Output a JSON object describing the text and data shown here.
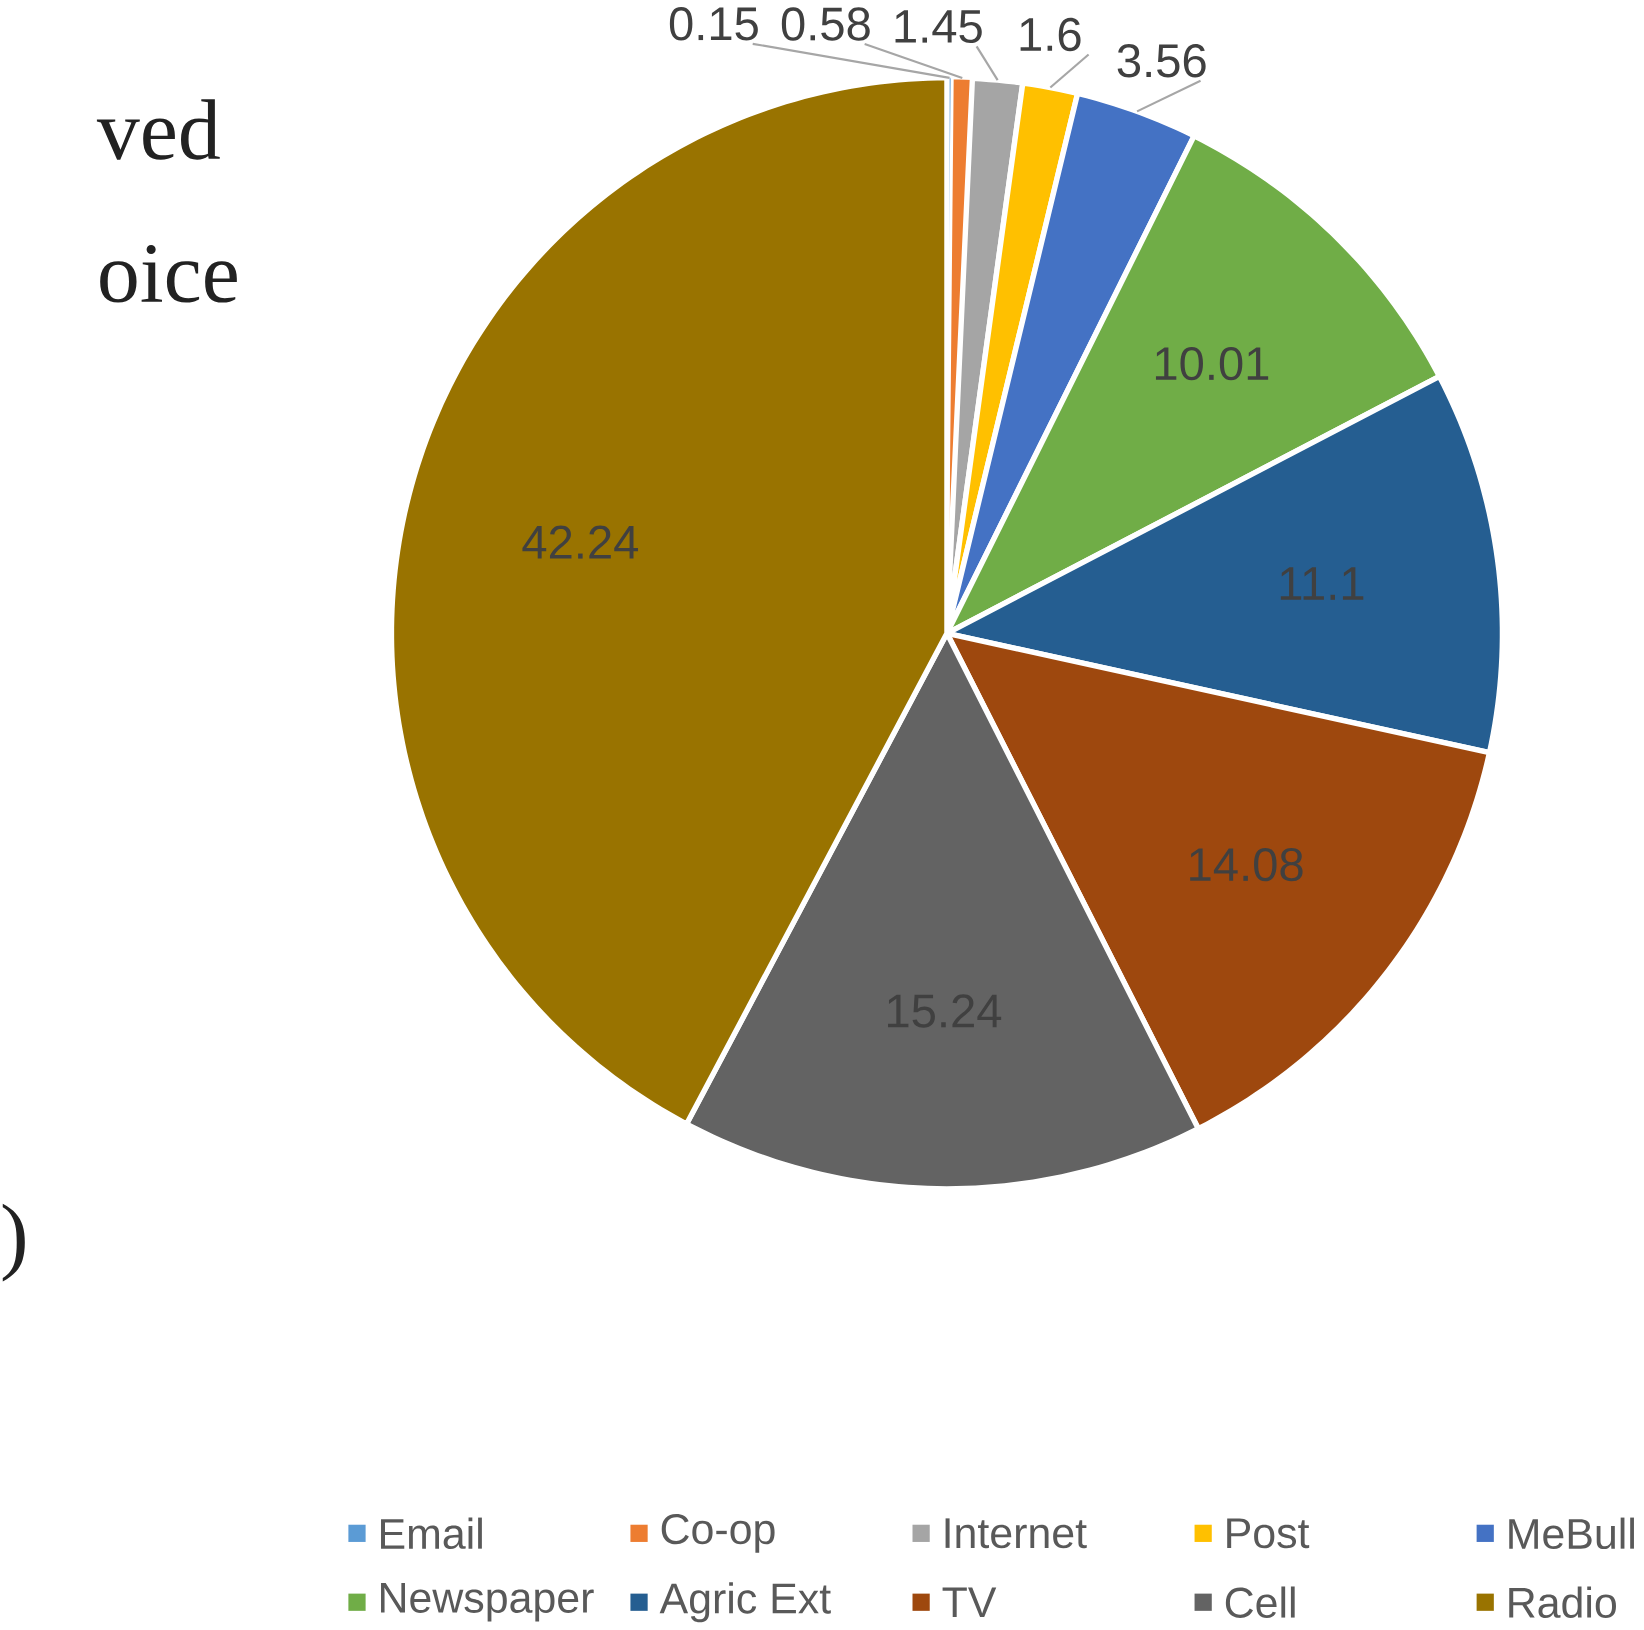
{
  "chart_data": {
    "type": "pie",
    "categories": [
      "Email",
      "Co-op",
      "Internet",
      "Post",
      "MeBull",
      "Newspaper",
      "Agric Ext",
      "TV",
      "Cell",
      "Radio"
    ],
    "values": [
      0.15,
      0.58,
      1.45,
      1.6,
      3.56,
      10.01,
      11.1,
      14.08,
      15.24,
      42.24
    ],
    "colors": [
      "#5b9bd5",
      "#ed7d31",
      "#a5a5a5",
      "#ffc000",
      "#4472c4",
      "#70ad47",
      "#255e91",
      "#9e480e",
      "#636363",
      "#997300"
    ],
    "data_labels": true,
    "legend": "bottom",
    "annotations": [
      "ved",
      "oice",
      ")"
    ]
  }
}
